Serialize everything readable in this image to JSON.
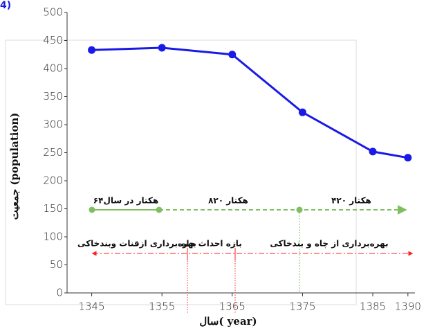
{
  "chart_data": {
    "type": "line",
    "panel_label": "4)",
    "x": [
      1345,
      1355,
      1365,
      1375,
      1385,
      1390
    ],
    "series": [
      {
        "color": "#1a1ae6",
        "values": [
          433,
          437,
          425,
          322,
          252,
          241
        ]
      }
    ],
    "xlim": [
      1341.5,
      1391
    ],
    "ylim": [
      0,
      500
    ],
    "xticks": [
      1345,
      1355,
      1365,
      1375,
      1385,
      1390
    ],
    "yticks": [
      0,
      50,
      100,
      150,
      200,
      250,
      300,
      350,
      400,
      450,
      500
    ],
    "xlabel": "سال( year)",
    "ylabel": "جمعیت (population)",
    "annotations": [
      "۶۴هکتار در سال",
      "۸۲۰ هکتار",
      "۴۲۰ هکتار",
      "بهره‌برداری ازقنات وبندخاکی",
      "بازه احداث چاه",
      "بهره‌برداری از چاه و بندخاکی"
    ]
  }
}
